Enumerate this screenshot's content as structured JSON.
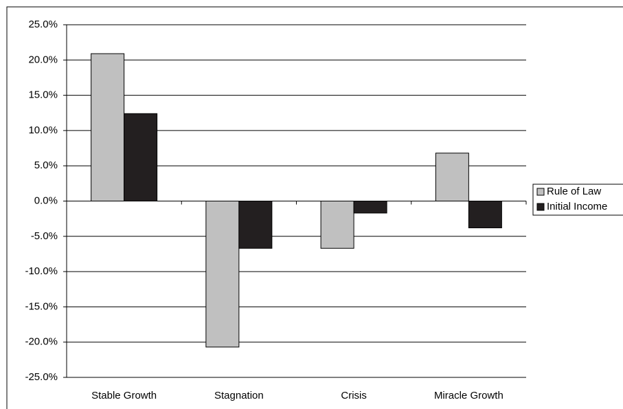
{
  "chart_data": {
    "type": "bar",
    "categories": [
      "Stable Growth",
      "Stagnation",
      "Crisis",
      "Miracle Growth"
    ],
    "series": [
      {
        "name": "Rule of Law",
        "color": "#c0c0c0",
        "values": [
          20.9,
          -20.7,
          -6.7,
          6.8
        ]
      },
      {
        "name": "Initial Income",
        "color": "#231f20",
        "values": [
          12.4,
          -6.7,
          -1.7,
          -3.8
        ]
      }
    ],
    "ylim": [
      -25,
      25
    ],
    "yticks": [
      {
        "value": -25,
        "label": "-25.0%"
      },
      {
        "value": -20,
        "label": "-20.0%"
      },
      {
        "value": -15,
        "label": "-15.0%"
      },
      {
        "value": -10,
        "label": "-10.0%"
      },
      {
        "value": -5,
        "label": "-5.0%"
      },
      {
        "value": 0,
        "label": "0.0%"
      },
      {
        "value": 5,
        "label": "5.0%"
      },
      {
        "value": 10,
        "label": "10.0%"
      },
      {
        "value": 15,
        "label": "15.0%"
      },
      {
        "value": 20,
        "label": "20.0%"
      },
      {
        "value": 25,
        "label": "25.0%"
      }
    ],
    "grid": true,
    "legend": "right"
  }
}
